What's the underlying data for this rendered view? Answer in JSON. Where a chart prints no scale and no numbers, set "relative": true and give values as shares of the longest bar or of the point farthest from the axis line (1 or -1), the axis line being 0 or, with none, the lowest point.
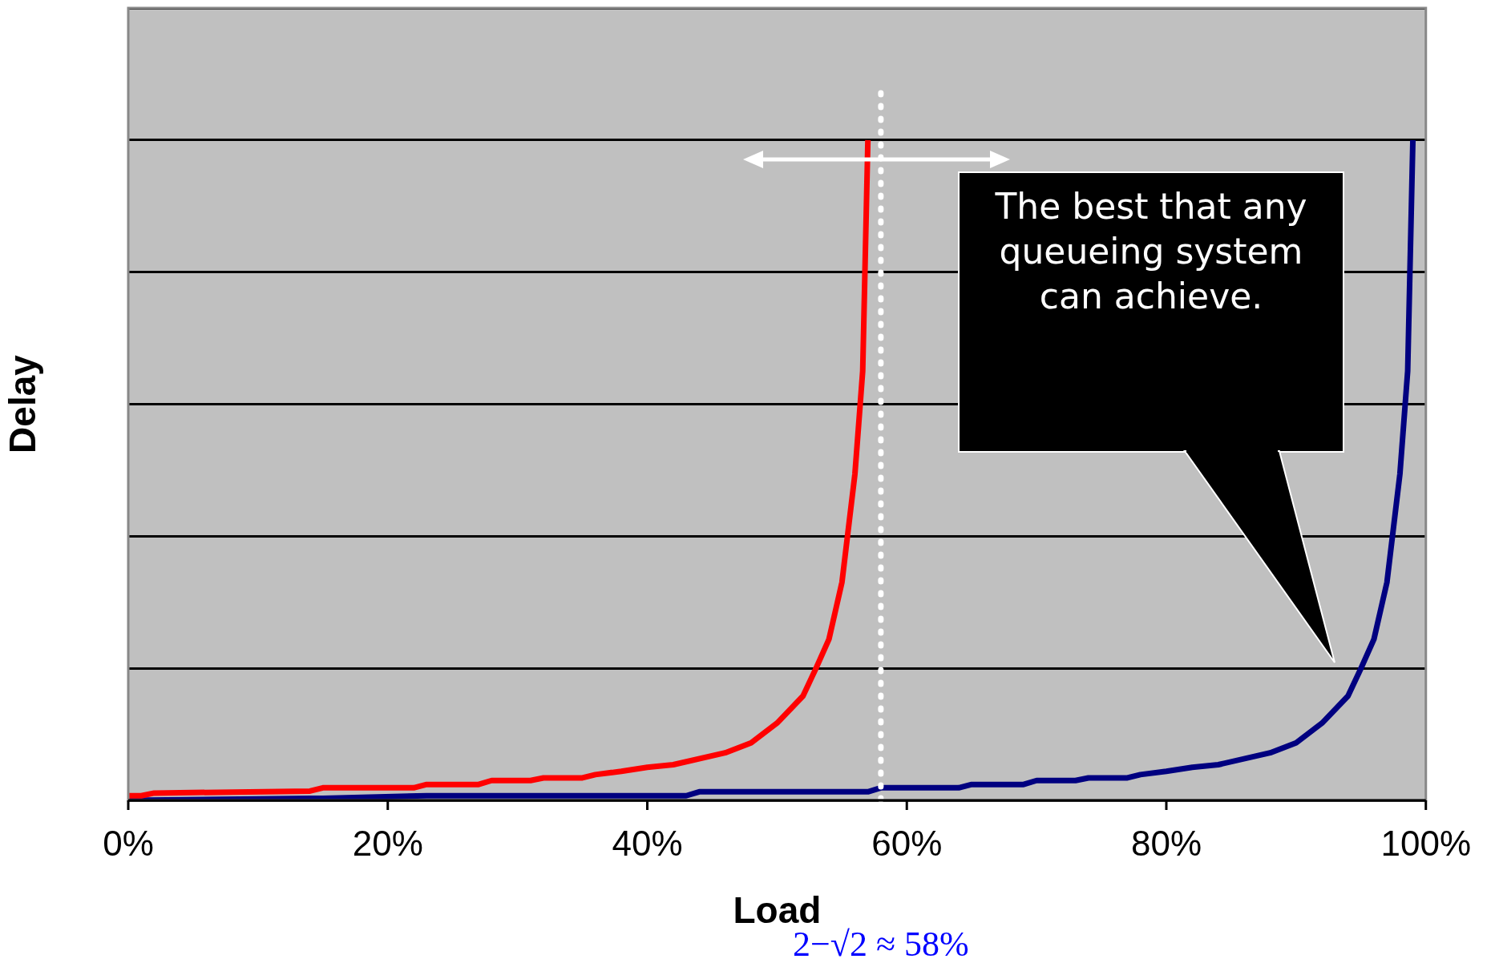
{
  "chart_data": {
    "type": "line",
    "xlabel": "Load",
    "ylabel": "Delay",
    "relative": true,
    "xlim": [
      0,
      100
    ],
    "xticks": [
      {
        "value": 0,
        "label": "0%"
      },
      {
        "value": 20,
        "label": "20%"
      },
      {
        "value": 40,
        "label": "40%"
      },
      {
        "value": 60,
        "label": "60%"
      },
      {
        "value": 80,
        "label": "80%"
      },
      {
        "value": 100,
        "label": "100%"
      }
    ],
    "grid": "y",
    "legend": false,
    "marker": "none",
    "line_style": "solid",
    "series": [
      {
        "color": "#ff0000",
        "x": [
          0,
          1,
          2,
          14,
          15,
          22,
          23,
          27,
          28,
          31,
          32,
          35,
          36,
          38,
          40,
          42,
          46,
          48,
          50,
          52,
          53,
          54,
          55,
          56,
          56.6,
          57
        ],
        "values": [
          0.007,
          0.007,
          0.011,
          0.014,
          0.019,
          0.019,
          0.024,
          0.024,
          0.03,
          0.03,
          0.034,
          0.034,
          0.039,
          0.044,
          0.05,
          0.054,
          0.072,
          0.087,
          0.117,
          0.158,
          0.2,
          0.244,
          0.33,
          0.494,
          0.65,
          1.0
        ]
      },
      {
        "color": "#000080",
        "x": [
          0,
          14,
          15,
          23,
          43,
          44,
          57,
          58,
          64,
          65,
          69,
          70,
          73,
          74,
          77,
          78,
          80,
          82,
          84,
          88,
          90,
          92,
          94,
          95,
          96,
          97,
          98,
          98.6,
          99
        ],
        "values": [
          0,
          0.003,
          0.003,
          0.007,
          0.007,
          0.013,
          0.013,
          0.019,
          0.019,
          0.024,
          0.024,
          0.03,
          0.03,
          0.034,
          0.034,
          0.039,
          0.044,
          0.05,
          0.054,
          0.072,
          0.087,
          0.117,
          0.158,
          0.2,
          0.244,
          0.33,
          0.494,
          0.65,
          1.0
        ]
      }
    ],
    "ref_lines": [
      {
        "axis": "x",
        "value": 58,
        "label": "2−√2 ≈ 58%",
        "color": "#ffffff",
        "line_style": "dotted"
      }
    ],
    "annotations": [
      "The best that any queueing system can achieve."
    ]
  }
}
